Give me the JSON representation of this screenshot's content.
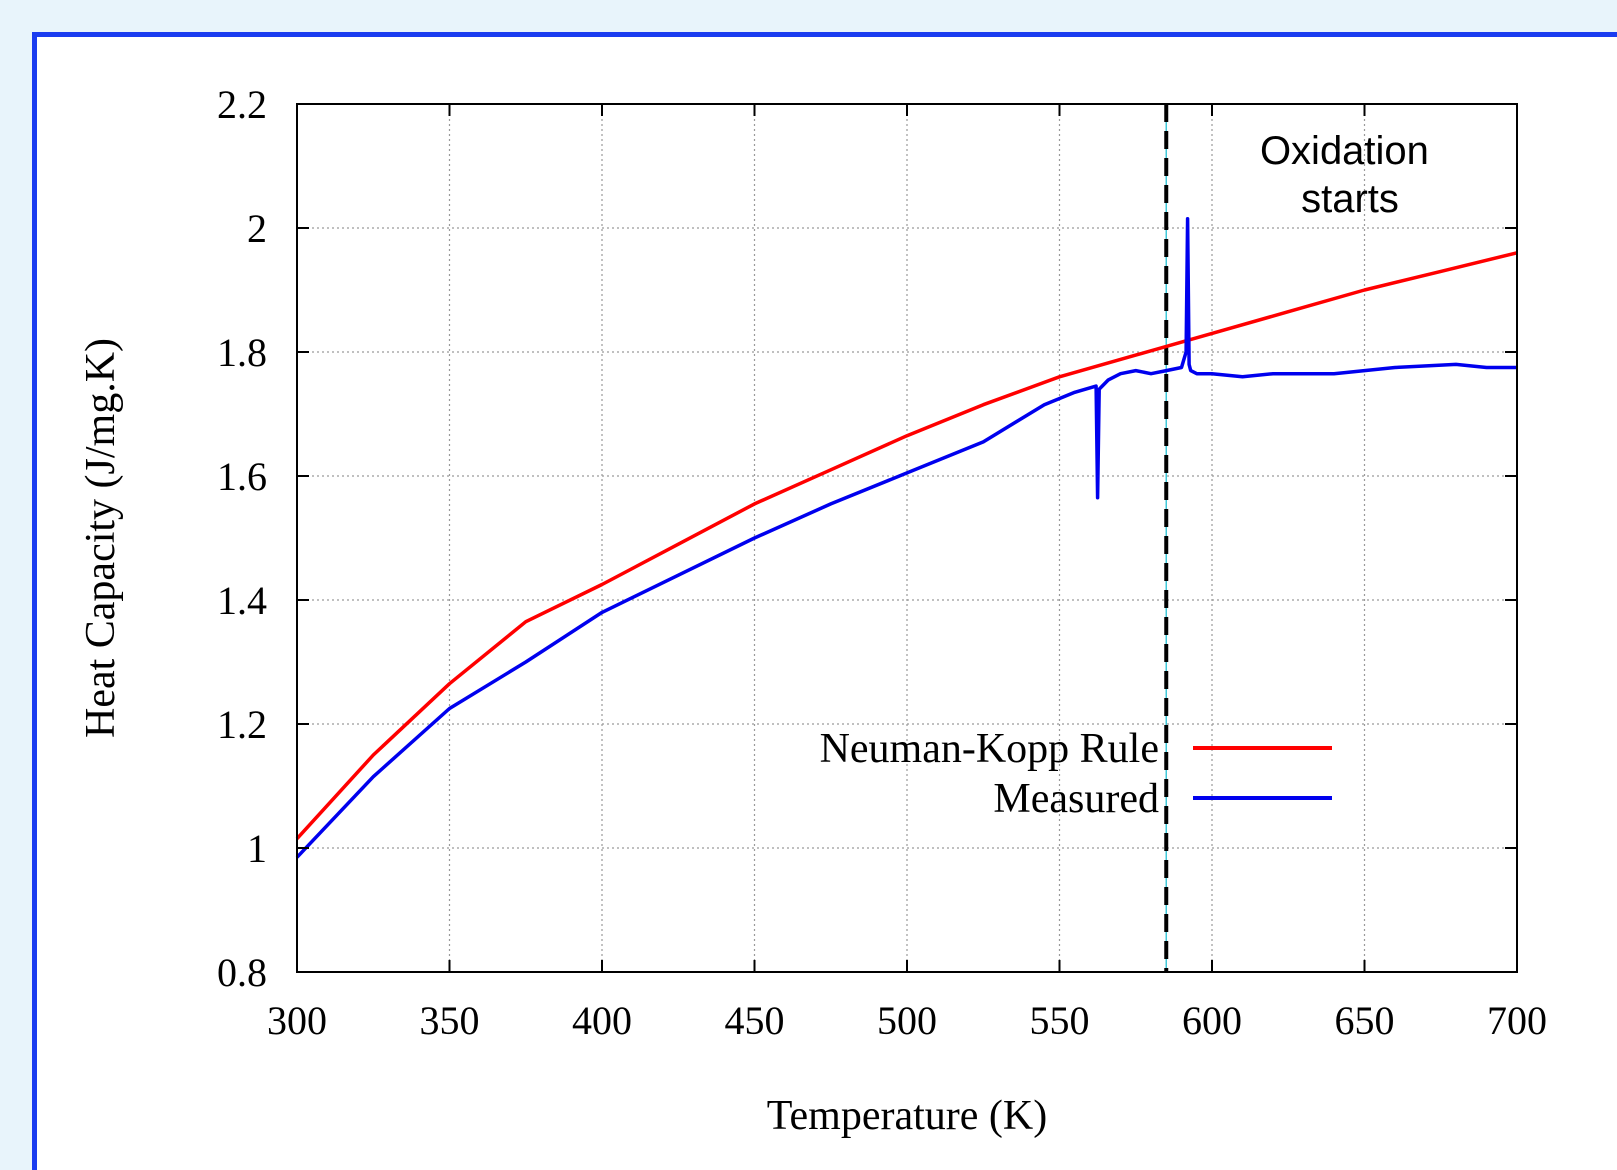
{
  "chart_data": {
    "type": "line",
    "title": "",
    "xlabel": "Temperature (K)",
    "ylabel": "Heat Capacity (J/mg.K)",
    "xlim": [
      300,
      700
    ],
    "ylim": [
      0.8,
      2.2
    ],
    "x_ticks": [
      300,
      350,
      400,
      450,
      500,
      550,
      600,
      650,
      700
    ],
    "y_ticks": [
      0.8,
      1,
      1.2,
      1.4,
      1.6,
      1.8,
      2,
      2.2
    ],
    "x_tick_labels": [
      "300",
      "350",
      "400",
      "450",
      "500",
      "550",
      "600",
      "650",
      "700"
    ],
    "y_tick_labels": [
      "0.8",
      "1",
      "1.2",
      "1.4",
      "1.6",
      "1.8",
      "2",
      "2.2"
    ],
    "grid": true,
    "legend_position": "lower-right",
    "series": [
      {
        "name": "Neuman-Kopp Rule",
        "color": "#ff0000",
        "x": [
          300,
          325,
          350,
          375,
          400,
          425,
          450,
          475,
          500,
          525,
          550,
          575,
          600,
          625,
          650,
          675,
          700
        ],
        "y": [
          1.015,
          1.15,
          1.265,
          1.365,
          1.425,
          1.49,
          1.555,
          1.61,
          1.665,
          1.715,
          1.76,
          1.795,
          1.83,
          1.865,
          1.9,
          1.93,
          1.96
        ]
      },
      {
        "name": "Measured",
        "color": "#0000ee",
        "x": [
          300,
          325,
          350,
          375,
          400,
          425,
          450,
          475,
          500,
          525,
          545,
          555,
          562,
          562.5,
          563,
          564,
          566,
          570,
          575,
          580,
          585,
          590,
          591.5,
          592,
          592.5,
          593,
          595,
          600,
          610,
          620,
          640,
          660,
          680,
          690,
          700
        ],
        "y": [
          0.985,
          1.115,
          1.225,
          1.3,
          1.38,
          1.44,
          1.5,
          1.555,
          1.605,
          1.655,
          1.715,
          1.735,
          1.745,
          1.565,
          1.74,
          1.745,
          1.755,
          1.765,
          1.77,
          1.765,
          1.77,
          1.775,
          1.8,
          2.015,
          1.78,
          1.77,
          1.765,
          1.765,
          1.76,
          1.765,
          1.765,
          1.775,
          1.78,
          1.775,
          1.775
        ]
      }
    ],
    "annotations": [
      {
        "type": "vertical-dashed-line",
        "x": 585,
        "text": ""
      },
      {
        "type": "text",
        "text_lines": [
          "Oxidation",
          "starts"
        ],
        "x": 645,
        "y": 2.1
      }
    ],
    "legend": [
      {
        "label": "Neuman-Kopp Rule",
        "color": "#ff0000"
      },
      {
        "label": "Measured",
        "color": "#0000ee"
      }
    ]
  }
}
